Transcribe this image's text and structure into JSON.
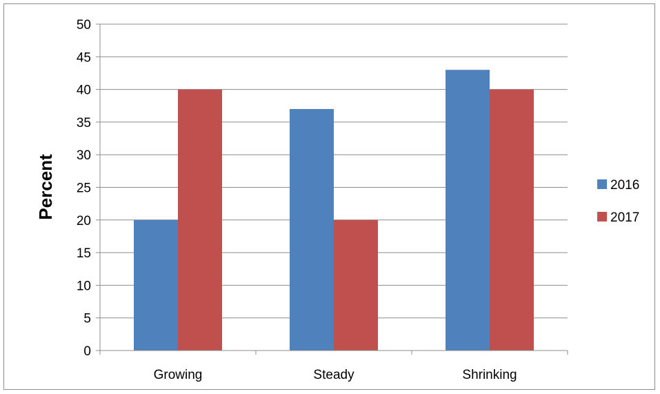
{
  "chart_data": {
    "type": "bar",
    "title": "",
    "xlabel": "",
    "ylabel": "Percent",
    "ylim": [
      0,
      50
    ],
    "ytick_step": 5,
    "grid": true,
    "legend_position": "right",
    "categories": [
      "Growing",
      "Steady",
      "Shrinking"
    ],
    "series": [
      {
        "name": "2016",
        "color": "#4f81bd",
        "values": [
          20,
          37,
          43
        ]
      },
      {
        "name": "2017",
        "color": "#c0504d",
        "values": [
          40,
          20,
          40
        ]
      }
    ]
  }
}
